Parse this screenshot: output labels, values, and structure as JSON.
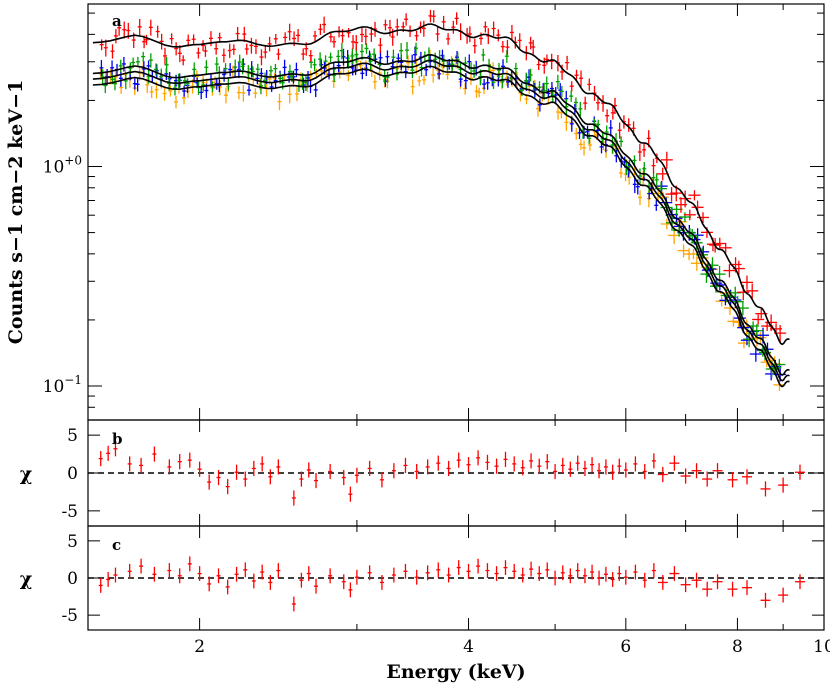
{
  "chart_data": [
    {
      "panel": "a",
      "type": "scatter",
      "scale": {
        "x": "log",
        "y": "log"
      },
      "xlim": [
        1.5,
        10
      ],
      "ylim": [
        0.07,
        5.5
      ],
      "xticks": [
        2,
        4,
        6,
        8,
        10
      ],
      "yticks": [
        {
          "value": 1.0,
          "label": "10+0"
        },
        {
          "value": 0.1,
          "label": "10−1"
        }
      ],
      "ylabel": "Counts s−1 cm−2 keV−1",
      "series": [
        {
          "color": "#ff0000",
          "scale": 1.45
        },
        {
          "color": "#00a000",
          "scale": 1.05
        },
        {
          "color": "#0000ee",
          "scale": 1.0
        },
        {
          "color": "#ffa500",
          "scale": 0.93
        }
      ],
      "model_anchors": {
        "energy": [
          1.5,
          1.6,
          1.7,
          1.8,
          1.9,
          2.0,
          2.1,
          2.2,
          2.3,
          2.5,
          2.8,
          3.0,
          3.2,
          3.5,
          4.0,
          4.5,
          5.0,
          5.5,
          6.0,
          6.5,
          7.0,
          7.5,
          8.0,
          8.5,
          9.0
        ],
        "flux": [
          2.45,
          2.55,
          2.65,
          2.6,
          2.52,
          2.5,
          2.6,
          2.5,
          2.4,
          2.5,
          2.75,
          2.85,
          2.9,
          2.95,
          2.85,
          2.5,
          2.0,
          1.5,
          1.1,
          0.75,
          0.5,
          0.33,
          0.22,
          0.15,
          0.11
        ]
      },
      "point_count": 150
    },
    {
      "panel": "b",
      "type": "scatter",
      "scale": {
        "x": "log",
        "y": "linear"
      },
      "xlim": [
        1.5,
        10
      ],
      "ylim": [
        -7,
        7
      ],
      "yticks": [
        -5,
        0,
        5
      ],
      "ylabel": "χ",
      "reference_line": 0,
      "series": [
        {
          "color": "#ff0000"
        }
      ],
      "points": [
        [
          1.55,
          1.9
        ],
        [
          1.58,
          2.6
        ],
        [
          1.61,
          3.2
        ],
        [
          1.67,
          1.2
        ],
        [
          1.72,
          1.0
        ],
        [
          1.78,
          2.5
        ],
        [
          1.85,
          0.8
        ],
        [
          1.9,
          1.5
        ],
        [
          1.95,
          1.7
        ],
        [
          2.0,
          0.5
        ],
        [
          2.05,
          -1.2
        ],
        [
          2.1,
          -0.6
        ],
        [
          2.15,
          -1.8
        ],
        [
          2.2,
          0.1
        ],
        [
          2.25,
          -0.8
        ],
        [
          2.3,
          0.6
        ],
        [
          2.35,
          1.2
        ],
        [
          2.4,
          -0.5
        ],
        [
          2.45,
          0.8
        ],
        [
          2.55,
          -3.3
        ],
        [
          2.6,
          -0.8
        ],
        [
          2.65,
          0.4
        ],
        [
          2.7,
          -1.0
        ],
        [
          2.8,
          0.2
        ],
        [
          2.9,
          -0.6
        ],
        [
          2.95,
          -2.8
        ],
        [
          3.0,
          -0.3
        ],
        [
          3.1,
          0.6
        ],
        [
          3.2,
          -0.9
        ],
        [
          3.3,
          0.3
        ],
        [
          3.4,
          1.0
        ],
        [
          3.5,
          0.2
        ],
        [
          3.6,
          0.8
        ],
        [
          3.7,
          1.3
        ],
        [
          3.8,
          0.6
        ],
        [
          3.9,
          1.7
        ],
        [
          4.0,
          1.1
        ],
        [
          4.1,
          2.0
        ],
        [
          4.2,
          1.4
        ],
        [
          4.3,
          0.9
        ],
        [
          4.4,
          1.8
        ],
        [
          4.5,
          1.2
        ],
        [
          4.6,
          0.7
        ],
        [
          4.7,
          1.6
        ],
        [
          4.8,
          0.9
        ],
        [
          4.9,
          1.5
        ],
        [
          5.0,
          0.2
        ],
        [
          5.1,
          1.0
        ],
        [
          5.2,
          0.5
        ],
        [
          5.3,
          1.3
        ],
        [
          5.4,
          0.6
        ],
        [
          5.5,
          1.1
        ],
        [
          5.6,
          0.3
        ],
        [
          5.7,
          0.8
        ],
        [
          5.8,
          0.1
        ],
        [
          5.9,
          0.9
        ],
        [
          6.0,
          0.4
        ],
        [
          6.15,
          1.2
        ],
        [
          6.3,
          0.2
        ],
        [
          6.45,
          1.6
        ],
        [
          6.6,
          -0.2
        ],
        [
          6.8,
          1.3
        ],
        [
          7.0,
          -0.4
        ],
        [
          7.2,
          0.3
        ],
        [
          7.4,
          -0.8
        ],
        [
          7.6,
          0.3
        ],
        [
          7.9,
          -0.9
        ],
        [
          8.2,
          -0.5
        ],
        [
          8.6,
          -2.1
        ],
        [
          9.0,
          -1.6
        ],
        [
          9.4,
          0.1
        ]
      ]
    },
    {
      "panel": "c",
      "type": "scatter",
      "scale": {
        "x": "log",
        "y": "linear"
      },
      "xlim": [
        1.5,
        10
      ],
      "ylim": [
        -7,
        7
      ],
      "xticks": [
        2,
        4,
        6,
        8,
        10
      ],
      "yticks": [
        -5,
        0,
        5
      ],
      "ylabel": "χ",
      "xlabel": "Energy (keV)",
      "reference_line": 0,
      "series": [
        {
          "color": "#ff0000"
        }
      ],
      "points": [
        [
          1.55,
          -1.0
        ],
        [
          1.58,
          -0.2
        ],
        [
          1.61,
          0.4
        ],
        [
          1.67,
          0.9
        ],
        [
          1.72,
          1.6
        ],
        [
          1.78,
          0.5
        ],
        [
          1.85,
          1.0
        ],
        [
          1.9,
          0.3
        ],
        [
          1.95,
          1.9
        ],
        [
          2.0,
          0.6
        ],
        [
          2.05,
          -0.8
        ],
        [
          2.1,
          0.3
        ],
        [
          2.15,
          -1.2
        ],
        [
          2.2,
          0.5
        ],
        [
          2.25,
          1.1
        ],
        [
          2.3,
          -0.4
        ],
        [
          2.35,
          0.8
        ],
        [
          2.4,
          -0.6
        ],
        [
          2.45,
          1.0
        ],
        [
          2.55,
          -3.5
        ],
        [
          2.6,
          -0.3
        ],
        [
          2.65,
          0.6
        ],
        [
          2.7,
          -1.1
        ],
        [
          2.8,
          0.3
        ],
        [
          2.9,
          -0.5
        ],
        [
          2.95,
          -1.6
        ],
        [
          3.0,
          0.1
        ],
        [
          3.1,
          0.7
        ],
        [
          3.2,
          -0.6
        ],
        [
          3.3,
          0.4
        ],
        [
          3.4,
          0.9
        ],
        [
          3.5,
          0.1
        ],
        [
          3.6,
          0.7
        ],
        [
          3.7,
          1.1
        ],
        [
          3.8,
          0.4
        ],
        [
          3.9,
          1.4
        ],
        [
          4.0,
          0.9
        ],
        [
          4.1,
          1.6
        ],
        [
          4.2,
          1.0
        ],
        [
          4.3,
          0.6
        ],
        [
          4.4,
          1.4
        ],
        [
          4.5,
          0.9
        ],
        [
          4.6,
          0.4
        ],
        [
          4.7,
          1.2
        ],
        [
          4.8,
          0.6
        ],
        [
          4.9,
          1.1
        ],
        [
          5.0,
          0.0
        ],
        [
          5.1,
          0.7
        ],
        [
          5.2,
          0.3
        ],
        [
          5.3,
          1.0
        ],
        [
          5.4,
          0.3
        ],
        [
          5.5,
          0.8
        ],
        [
          5.6,
          0.0
        ],
        [
          5.7,
          0.5
        ],
        [
          5.8,
          -0.2
        ],
        [
          5.9,
          0.6
        ],
        [
          6.0,
          0.1
        ],
        [
          6.15,
          0.8
        ],
        [
          6.3,
          -0.3
        ],
        [
          6.45,
          1.0
        ],
        [
          6.6,
          -0.6
        ],
        [
          6.8,
          0.6
        ],
        [
          7.0,
          -0.9
        ],
        [
          7.2,
          -0.3
        ],
        [
          7.4,
          -1.5
        ],
        [
          7.6,
          -0.5
        ],
        [
          7.9,
          -1.5
        ],
        [
          8.2,
          -1.3
        ],
        [
          8.6,
          -3.0
        ],
        [
          9.0,
          -2.3
        ],
        [
          9.4,
          -0.5
        ]
      ]
    }
  ],
  "panels": {
    "a": {
      "letter": "a",
      "ylabel": "Counts s−1 cm−2 keV−1"
    },
    "b": {
      "letter": "b",
      "ylabel": "χ"
    },
    "c": {
      "letter": "c",
      "ylabel": "χ"
    }
  },
  "xaxis": {
    "label": "Energy (keV)",
    "tick_labels": [
      "2",
      "4",
      "6",
      "8",
      "10"
    ]
  }
}
